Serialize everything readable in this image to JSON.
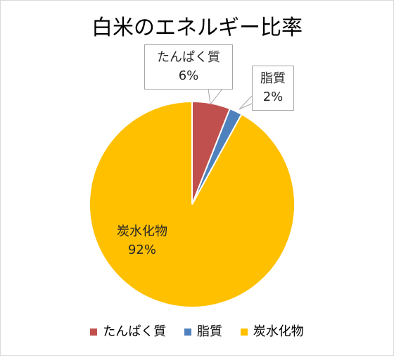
{
  "chart_data": {
    "type": "pie",
    "title": "白米のエネルギー比率",
    "slices": [
      {
        "label": "たんぱく質",
        "value": 6,
        "value_label": "6%",
        "color": "#c0504d"
      },
      {
        "label": "脂質",
        "value": 2,
        "value_label": "2%",
        "color": "#4f81bd"
      },
      {
        "label": "炭水化物",
        "value": 92,
        "value_label": "92%",
        "color": "#ffc000"
      }
    ],
    "legend_position": "bottom"
  }
}
